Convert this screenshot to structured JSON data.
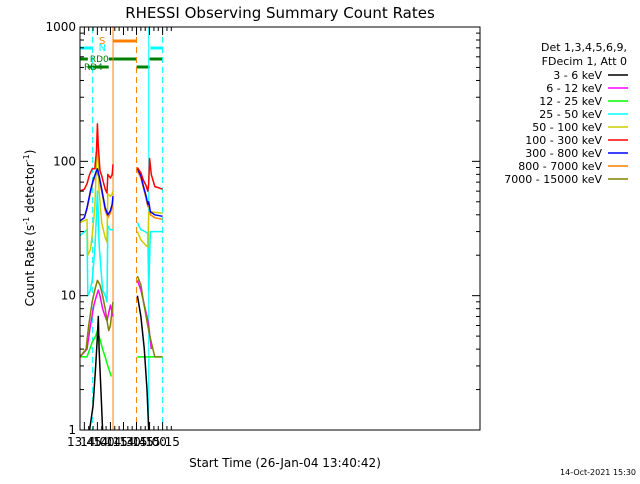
{
  "chart_data": {
    "type": "line",
    "title": "RHESSI Observing Summary Count Rates",
    "xlabel": "Start Time (26-Jan-04 13:40:42)",
    "ylabel_main": "Count Rate (s",
    "ylabel_sup1": "-1",
    "ylabel_mid": " detector",
    "ylabel_sup2": "-1",
    "ylabel_end": ")",
    "yscale": "log",
    "ylim": [
      1,
      1000
    ],
    "xlim_min": [
      820,
      1280
    ],
    "x_ticks": [
      {
        "m": 825,
        "label": "13:45"
      },
      {
        "m": 840,
        "label": "14:00"
      },
      {
        "m": 855,
        "label": "14:15"
      },
      {
        "m": 870,
        "label": "14:30"
      },
      {
        "m": 885,
        "label": "14:45"
      },
      {
        "m": 900,
        "label": "15:00"
      },
      {
        "m": 915,
        "label": "15:15"
      }
    ],
    "y_ticks": [
      {
        "v": 1,
        "label": "1"
      },
      {
        "v": 10,
        "label": "10"
      },
      {
        "v": 100,
        "label": "100"
      },
      {
        "v": 1000,
        "label": "1000"
      }
    ],
    "legend_header": [
      "Det 1,3,4,5,6,9,",
      "FDecim 1, Att 0"
    ],
    "series": [
      {
        "name": "3 - 6 keV",
        "color": "#000000",
        "points": [
          [
            831,
            1
          ],
          [
            835,
            1.5
          ],
          [
            838,
            3
          ],
          [
            840,
            5
          ],
          [
            841,
            7
          ],
          [
            842,
            4
          ],
          [
            844,
            2
          ],
          [
            846,
            1
          ]
        ],
        "points2": [
          [
            886,
            10
          ],
          [
            890,
            7
          ],
          [
            894,
            4
          ],
          [
            897,
            2
          ],
          [
            899,
            1
          ]
        ]
      },
      {
        "name": "6 - 12 keV",
        "color": "#ff00ff",
        "points": [
          [
            820,
            3.5
          ],
          [
            828,
            4
          ],
          [
            832,
            6
          ],
          [
            836,
            8.5
          ],
          [
            839,
            10
          ],
          [
            841,
            11
          ],
          [
            843,
            10
          ],
          [
            846,
            8
          ],
          [
            849,
            7
          ],
          [
            851,
            6.5
          ],
          [
            855,
            8.5
          ],
          [
            858,
            7
          ]
        ],
        "points2": [
          [
            886,
            13
          ],
          [
            890,
            11
          ],
          [
            894,
            8.5
          ],
          [
            897,
            7
          ],
          [
            899,
            6
          ],
          [
            902,
            4
          ]
        ]
      },
      {
        "name": "12 - 25 keV",
        "color": "#00ff00",
        "points": [
          [
            820,
            3.5
          ],
          [
            828,
            3.5
          ],
          [
            834,
            4.5
          ],
          [
            838,
            5
          ],
          [
            840,
            5.5
          ],
          [
            842,
            5
          ],
          [
            846,
            4
          ],
          [
            849,
            3.5
          ],
          [
            852,
            3
          ],
          [
            856,
            2.5
          ]
        ],
        "points2": [
          [
            886,
            3.5
          ],
          [
            892,
            3.5
          ],
          [
            898,
            3.5
          ],
          [
            904,
            3.5
          ],
          [
            915,
            3.5
          ]
        ]
      },
      {
        "name": "25 - 50 keV",
        "color": "#00ffff",
        "points": [
          [
            820,
            28
          ],
          [
            828,
            31
          ],
          [
            829,
            10
          ],
          [
            832,
            11
          ],
          [
            834,
            13
          ],
          [
            837,
            22
          ],
          [
            839,
            40
          ],
          [
            840,
            60
          ],
          [
            841,
            40
          ],
          [
            842,
            24
          ],
          [
            844,
            16
          ],
          [
            846,
            11
          ],
          [
            849,
            10
          ],
          [
            851,
            9
          ],
          [
            852,
            33
          ],
          [
            855,
            31
          ],
          [
            857,
            31
          ],
          [
            858,
            31
          ]
        ],
        "points2": [
          [
            886,
            35
          ],
          [
            890,
            31
          ],
          [
            895,
            30
          ],
          [
            898,
            29
          ],
          [
            899,
            11
          ],
          [
            901,
            30
          ],
          [
            915,
            30
          ]
        ]
      },
      {
        "name": "50 - 100 keV",
        "color": "#cccc00",
        "points": [
          [
            820,
            35
          ],
          [
            828,
            37
          ],
          [
            829,
            20
          ],
          [
            832,
            22
          ],
          [
            834,
            28
          ],
          [
            837,
            45
          ],
          [
            839,
            100
          ],
          [
            840,
            150
          ],
          [
            841,
            100
          ],
          [
            842,
            60
          ],
          [
            845,
            35
          ],
          [
            849,
            27
          ],
          [
            851,
            25
          ],
          [
            852,
            57
          ],
          [
            855,
            55
          ],
          [
            857,
            57
          ],
          [
            858,
            60
          ]
        ],
        "points2": [
          [
            886,
            30
          ],
          [
            890,
            26
          ],
          [
            895,
            24
          ],
          [
            898,
            23
          ],
          [
            899,
            42
          ],
          [
            902,
            42
          ],
          [
            915,
            41
          ]
        ]
      },
      {
        "name": "100 - 300 keV",
        "color": "#ff0000",
        "points": [
          [
            820,
            60
          ],
          [
            825,
            62
          ],
          [
            828,
            68
          ],
          [
            831,
            80
          ],
          [
            834,
            88
          ],
          [
            837,
            88
          ],
          [
            839,
            120
          ],
          [
            840,
            190
          ],
          [
            841,
            130
          ],
          [
            843,
            85
          ],
          [
            845,
            78
          ],
          [
            849,
            62
          ],
          [
            851,
            58
          ],
          [
            852,
            80
          ],
          [
            855,
            75
          ],
          [
            857,
            80
          ],
          [
            858,
            95
          ]
        ],
        "points2": [
          [
            886,
            90
          ],
          [
            890,
            82
          ],
          [
            893,
            72
          ],
          [
            896,
            66
          ],
          [
            898,
            60
          ],
          [
            899,
            68
          ],
          [
            900,
            105
          ],
          [
            902,
            80
          ],
          [
            906,
            65
          ],
          [
            915,
            62
          ]
        ]
      },
      {
        "name": "300 - 800 keV",
        "color": "#0000ff",
        "points": [
          [
            820,
            36
          ],
          [
            825,
            38
          ],
          [
            828,
            45
          ],
          [
            832,
            60
          ],
          [
            835,
            72
          ],
          [
            838,
            82
          ],
          [
            840,
            88
          ],
          [
            842,
            78
          ],
          [
            845,
            62
          ],
          [
            849,
            45
          ],
          [
            852,
            40
          ],
          [
            855,
            43
          ],
          [
            857,
            48
          ],
          [
            858,
            55
          ]
        ],
        "points2": [
          [
            886,
            88
          ],
          [
            890,
            78
          ],
          [
            893,
            65
          ],
          [
            896,
            55
          ],
          [
            898,
            48
          ],
          [
            899,
            50
          ],
          [
            901,
            42
          ],
          [
            906,
            40
          ],
          [
            915,
            39
          ]
        ]
      },
      {
        "name": "800 - 7000 keV",
        "color": "#ff8000",
        "points": [
          [
            820,
            36
          ],
          [
            825,
            38
          ],
          [
            828,
            44
          ],
          [
            832,
            58
          ],
          [
            835,
            70
          ],
          [
            838,
            78
          ],
          [
            840,
            82
          ],
          [
            842,
            75
          ],
          [
            845,
            60
          ],
          [
            849,
            43
          ],
          [
            852,
            38
          ],
          [
            855,
            41
          ],
          [
            857,
            46
          ],
          [
            858,
            52
          ]
        ],
        "points2": [
          [
            886,
            85
          ],
          [
            890,
            75
          ],
          [
            893,
            63
          ],
          [
            896,
            53
          ],
          [
            898,
            46
          ],
          [
            899,
            48
          ],
          [
            901,
            40
          ],
          [
            906,
            38
          ],
          [
            915,
            37
          ]
        ]
      },
      {
        "name": "7000 - 15000 keV",
        "color": "#808000",
        "points": [
          [
            820,
            3.5
          ],
          [
            827,
            4
          ],
          [
            830,
            6
          ],
          [
            834,
            9
          ],
          [
            837,
            11
          ],
          [
            840,
            13
          ],
          [
            843,
            12
          ],
          [
            846,
            10
          ],
          [
            849,
            8
          ],
          [
            851,
            6.5
          ],
          [
            853,
            5.5
          ],
          [
            855,
            6
          ],
          [
            857,
            8
          ],
          [
            858,
            9
          ]
        ],
        "points2": [
          [
            886,
            14
          ],
          [
            890,
            12
          ],
          [
            893,
            9
          ],
          [
            896,
            7
          ],
          [
            899,
            5.5
          ],
          [
            902,
            4.5
          ],
          [
            906,
            3.5
          ],
          [
            915,
            3.5
          ]
        ]
      }
    ],
    "annotations": {
      "n_label": "N",
      "s_label": "S",
      "rd0_label": "RD0",
      "rd4_label": "RD4",
      "n_bars": [
        [
          820,
          834.5
        ],
        [
          901,
          915
        ]
      ],
      "s_bar": [
        858,
        885
      ],
      "rd0_bars": [
        [
          820,
          829
        ]
      ],
      "rd4_bars": [
        [
          829,
          853
        ],
        [
          853,
          885
        ],
        [
          885,
          900
        ],
        [
          900,
          915
        ]
      ],
      "n_lines_solid": [
        899
      ],
      "n_lines_dashed": [
        834.5,
        915
      ],
      "s_lines_solid": [
        858
      ],
      "s_lines_dashed": [
        885
      ],
      "colors": {
        "n": "#00ffff",
        "s": "#ff8000",
        "rd": "#008000"
      }
    }
  },
  "footer": {
    "date_stamp": "14-Oct-2021 15:30"
  }
}
